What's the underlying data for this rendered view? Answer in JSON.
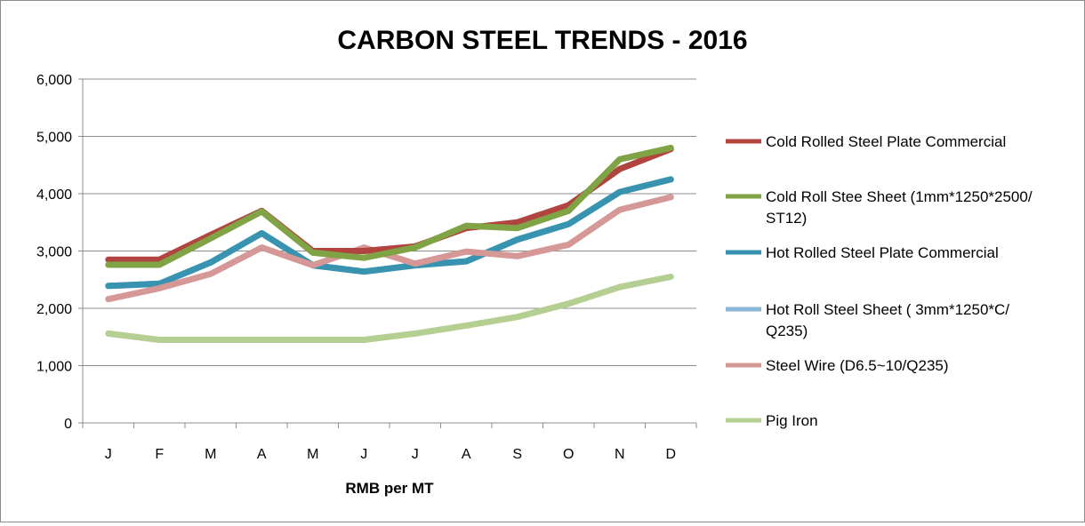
{
  "chart_data": {
    "type": "line",
    "title": "CARBON STEEL TRENDS - 2016",
    "xlabel": "RMB per MT",
    "ylabel": "",
    "categories": [
      "J",
      "F",
      "M",
      "A",
      "M",
      "J",
      "J",
      "A",
      "S",
      "O",
      "N",
      "D"
    ],
    "ylim": [
      0,
      6000
    ],
    "yticks": [
      0,
      1000,
      2000,
      3000,
      4000,
      5000,
      6000
    ],
    "ytick_labels": [
      "0",
      "1,000",
      "2,000",
      "3,000",
      "4,000",
      "5,000",
      "6,000"
    ],
    "grid": true,
    "legend_position": "right",
    "series": [
      {
        "name": "Cold Rolled Steel Plate Commercial",
        "name_lines": [
          "Cold Rolled Steel Plate Commercial"
        ],
        "color": "#b2443f",
        "values": [
          2850,
          2850,
          3280,
          3700,
          3000,
          3000,
          3080,
          3400,
          3500,
          3800,
          4430,
          4780
        ]
      },
      {
        "name": "Cold Roll Stee Sheet (1mm*1250*2500/ST12)",
        "name_lines": [
          "Cold Roll Stee Sheet (1mm*1250*2500/",
          "ST12)"
        ],
        "color": "#7fa345",
        "values": [
          2760,
          2760,
          3220,
          3690,
          2970,
          2880,
          3060,
          3440,
          3400,
          3700,
          4600,
          4800
        ]
      },
      {
        "name": "Hot Rolled Steel Plate Commercial",
        "name_lines": [
          "Hot Rolled Steel Plate Commercial"
        ],
        "color": "#3893b0",
        "values": [
          2390,
          2430,
          2800,
          3310,
          2750,
          2640,
          2750,
          2820,
          3200,
          3470,
          4030,
          4250
        ]
      },
      {
        "name": "Hot Roll Steel Sheet ( 3mm*1250*C/Q235)",
        "name_lines": [
          "Hot Roll Steel Sheet ( 3mm*1250*C/",
          "Q235)"
        ],
        "color": "#8ab6d8",
        "values": [
          2390,
          2430,
          2800,
          3310,
          2750,
          2640,
          2750,
          2820,
          3200,
          3470,
          4030,
          4250
        ]
      },
      {
        "name": "Steel Wire (D6.5~10/Q235)",
        "name_lines": [
          "Steel Wire (D6.5~10/Q235)"
        ],
        "color": "#d69896",
        "values": [
          2160,
          2350,
          2600,
          3060,
          2750,
          3060,
          2780,
          2990,
          2910,
          3110,
          3720,
          3940
        ]
      },
      {
        "name": "Pig Iron",
        "name_lines": [
          "Pig Iron"
        ],
        "color": "#b5ce91",
        "values": [
          1560,
          1450,
          1450,
          1450,
          1450,
          1450,
          1560,
          1700,
          1850,
          2080,
          2370,
          2550
        ]
      }
    ],
    "draw_order": [
      5,
      3,
      2,
      4,
      0,
      1
    ]
  }
}
